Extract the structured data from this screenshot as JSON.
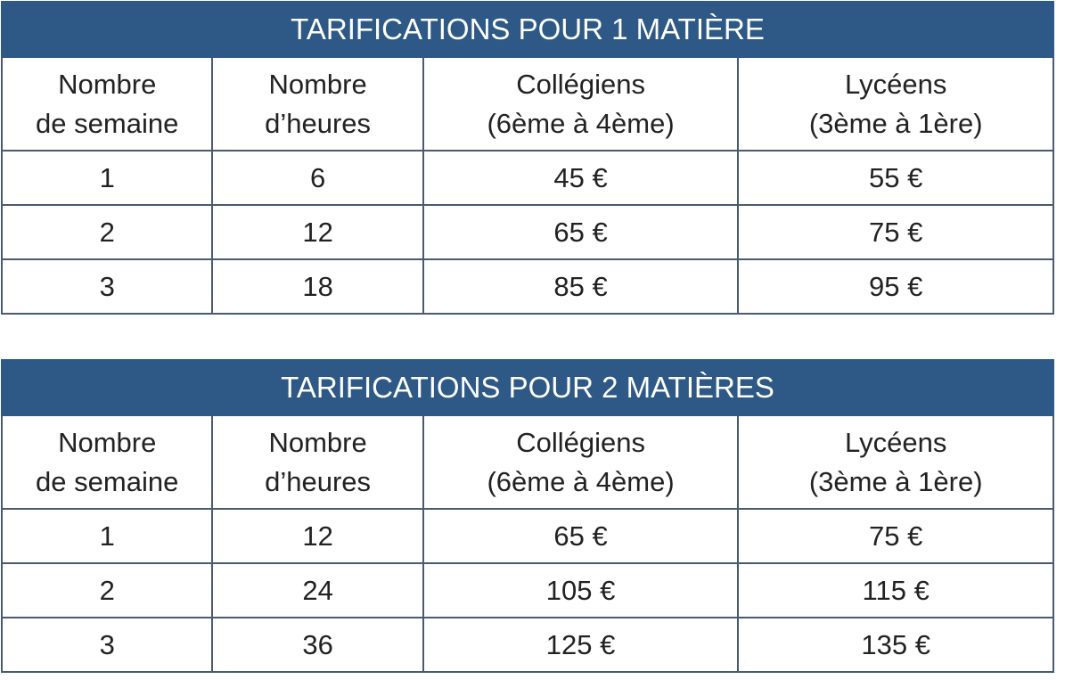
{
  "tables": [
    {
      "title": "TARIFICATIONS POUR 1 MATIÈRE",
      "headers": [
        {
          "line1": "Nombre",
          "line2": "de semaine"
        },
        {
          "line1": "Nombre",
          "line2": "d’heures"
        },
        {
          "line1": "Collégiens",
          "line2": "(6ème à 4ème)"
        },
        {
          "line1": "Lycéens",
          "line2": "(3ème à 1ère)"
        }
      ],
      "rows": [
        [
          "1",
          "6",
          "45 €",
          "55 €"
        ],
        [
          "2",
          "12",
          "65 €",
          "75 €"
        ],
        [
          "3",
          "18",
          "85 €",
          "95 €"
        ]
      ]
    },
    {
      "title": "TARIFICATIONS POUR 2 MATIÈRES",
      "headers": [
        {
          "line1": "Nombre",
          "line2": "de semaine"
        },
        {
          "line1": "Nombre",
          "line2": "d’heures"
        },
        {
          "line1": "Collégiens",
          "line2": "(6ème à 4ème)"
        },
        {
          "line1": "Lycéens",
          "line2": "(3ème à 1ère)"
        }
      ],
      "rows": [
        [
          "1",
          "12",
          "65 €",
          "75 €"
        ],
        [
          "2",
          "24",
          "105 €",
          "115 €"
        ],
        [
          "3",
          "36",
          "125 €",
          "135 €"
        ]
      ]
    }
  ],
  "colors": {
    "title_background": "#2e5986",
    "title_text": "#ffffff",
    "border": "#4a5a70",
    "text": "#222222"
  }
}
